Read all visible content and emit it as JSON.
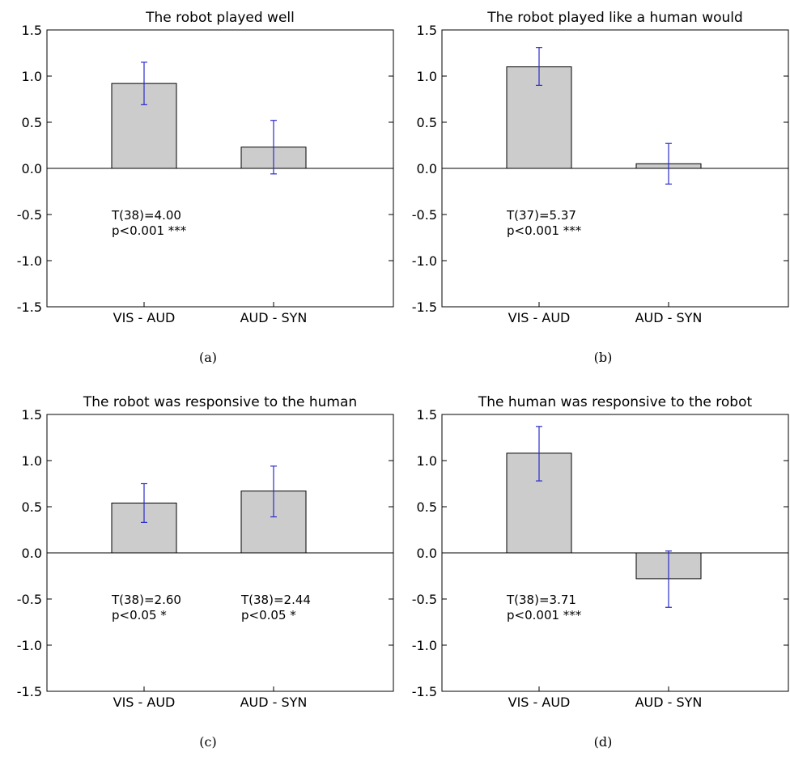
{
  "chart_data": [
    {
      "type": "bar",
      "title": "The robot played well",
      "caption": "(a)",
      "categories": [
        "VIS - AUD",
        "AUD - SYN"
      ],
      "values": [
        0.92,
        0.23
      ],
      "errors": [
        [
          0.69,
          1.15
        ],
        [
          -0.06,
          0.52
        ]
      ],
      "ylim": [
        -1.5,
        1.5
      ],
      "yticks": [
        "1.5",
        "1.0",
        "0.5",
        "0.0",
        "-0.5",
        "-1.0",
        "-1.5"
      ],
      "annotations": [
        {
          "category": "VIS - AUD",
          "lines": [
            "T(38)=4.00",
            "p<0.001 ***"
          ]
        }
      ]
    },
    {
      "type": "bar",
      "title": "The robot played like a human would",
      "caption": "(b)",
      "categories": [
        "VIS - AUD",
        "AUD - SYN"
      ],
      "values": [
        1.1,
        0.05
      ],
      "errors": [
        [
          0.9,
          1.31
        ],
        [
          -0.17,
          0.27
        ]
      ],
      "ylim": [
        -1.5,
        1.5
      ],
      "yticks": [
        "1.5",
        "1.0",
        "0.5",
        "0.0",
        "-0.5",
        "-1.0",
        "-1.5"
      ],
      "annotations": [
        {
          "category": "VIS - AUD",
          "lines": [
            "T(37)=5.37",
            "p<0.001 ***"
          ]
        }
      ]
    },
    {
      "type": "bar",
      "title": "The robot was responsive to the human",
      "caption": "(c)",
      "categories": [
        "VIS - AUD",
        "AUD - SYN"
      ],
      "values": [
        0.54,
        0.67
      ],
      "errors": [
        [
          0.33,
          0.75
        ],
        [
          0.39,
          0.94
        ]
      ],
      "ylim": [
        -1.5,
        1.5
      ],
      "yticks": [
        "1.5",
        "1.0",
        "0.5",
        "0.0",
        "-0.5",
        "-1.0",
        "-1.5"
      ],
      "annotations": [
        {
          "category": "VIS - AUD",
          "lines": [
            "T(38)=2.60",
            "p<0.05 *"
          ]
        },
        {
          "category": "AUD - SYN",
          "lines": [
            "T(38)=2.44",
            "p<0.05 *"
          ]
        }
      ]
    },
    {
      "type": "bar",
      "title": "The human was responsive to the robot",
      "caption": "(d)",
      "categories": [
        "VIS - AUD",
        "AUD - SYN"
      ],
      "values": [
        1.08,
        -0.28
      ],
      "errors": [
        [
          0.78,
          1.37
        ],
        [
          -0.59,
          0.02
        ]
      ],
      "ylim": [
        -1.5,
        1.5
      ],
      "yticks": [
        "1.5",
        "1.0",
        "0.5",
        "0.0",
        "-0.5",
        "-1.0",
        "-1.5"
      ],
      "annotations": [
        {
          "category": "VIS - AUD",
          "lines": [
            "T(38)=3.71",
            "p<0.001 ***"
          ]
        }
      ]
    }
  ],
  "colors": {
    "bar_fill": "#cccccc",
    "bar_stroke": "#000000",
    "errorbar": "#2b2bcc",
    "axis": "#000000"
  }
}
